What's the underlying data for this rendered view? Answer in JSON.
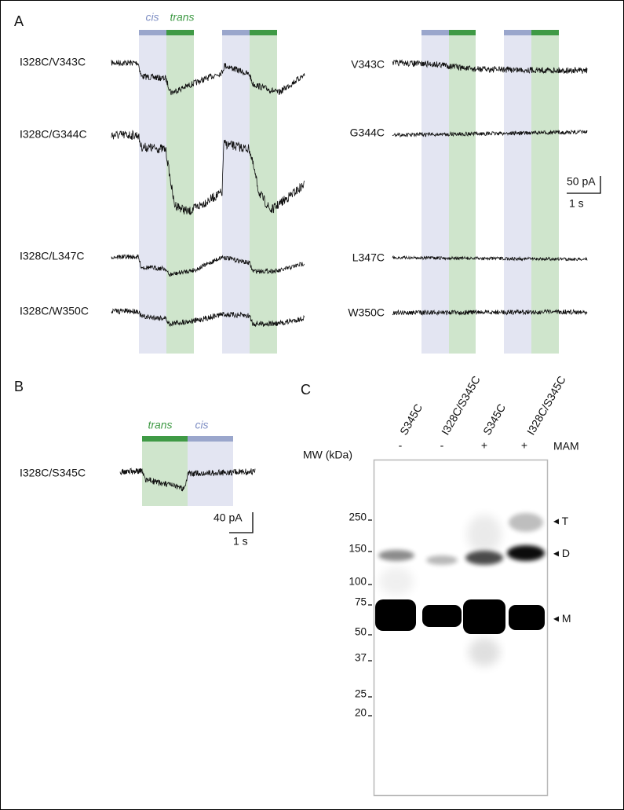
{
  "panel_a": {
    "label": "A",
    "cis": "cis",
    "trans": "trans",
    "left_traces": [
      "I328C/V343C",
      "I328C/G344C",
      "I328C/L347C",
      "I328C/W350C"
    ],
    "right_traces": [
      "V343C",
      "G344C",
      "L347C",
      "W350C"
    ],
    "scale_bar": {
      "current": "50 pA",
      "time": "1 s"
    }
  },
  "panel_b": {
    "label": "B",
    "trans": "trans",
    "cis": "cis",
    "trace": "I328C/S345C",
    "scale_bar": {
      "current": "40 pA",
      "time": "1 s"
    }
  },
  "panel_c": {
    "label": "C",
    "mw_label": "MW (kDa)",
    "mam_label": "MAM",
    "lanes": [
      {
        "name": "S345C",
        "mam": "-"
      },
      {
        "name": "I328C/S345C",
        "mam": "-"
      },
      {
        "name": "S345C",
        "mam": "+"
      },
      {
        "name": "I328C/S345C",
        "mam": "+"
      }
    ],
    "markers": [
      "250",
      "150",
      "100",
      "75",
      "50",
      "37",
      "25",
      "20"
    ],
    "bands": [
      "T",
      "D",
      "M"
    ]
  }
}
